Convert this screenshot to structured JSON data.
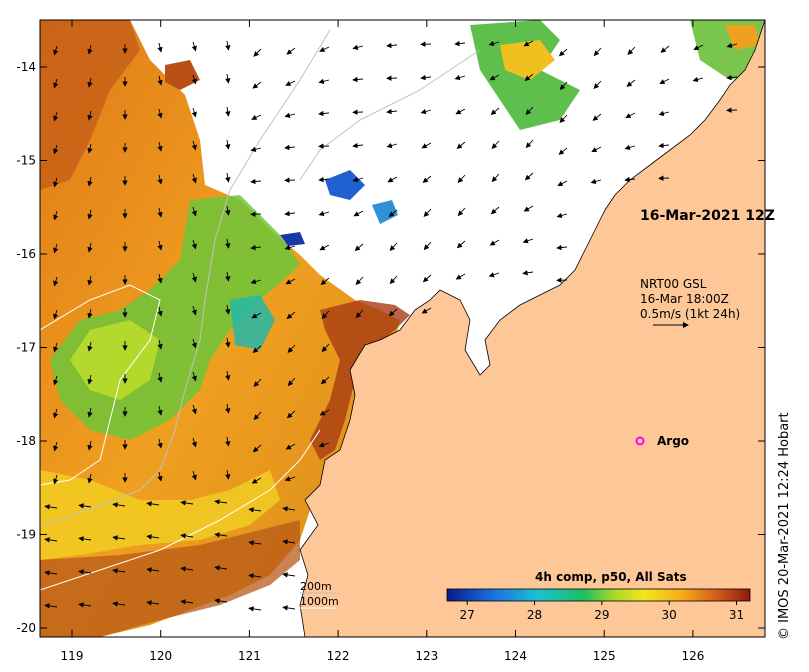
{
  "map": {
    "lon_ticks": [
      "119",
      "120",
      "121",
      "122",
      "123",
      "124",
      "125",
      "126"
    ],
    "lat_ticks": [
      "-14",
      "-15",
      "-16",
      "-17",
      "-18",
      "-19",
      "-20"
    ],
    "date_label": "16-Mar-2021 12Z",
    "currents": {
      "source": "NRT00 GSL",
      "time": "16-Mar 18:00Z",
      "scale": "0.5m/s (1kt 24h)"
    },
    "argo": {
      "label": "Argo",
      "color": "#ff00ff"
    },
    "contours": {
      "c200": "200m",
      "c1000": "1000m"
    },
    "colorbar": {
      "title": "4h comp, p50, All Sats",
      "ticks": [
        "27",
        "28",
        "29",
        "30",
        "31"
      ],
      "min": 26.7,
      "max": 31.2
    },
    "credit": "© IMOS 20-Mar-2021 12:24 Hobart",
    "colors": {
      "land": "#fdc797",
      "frame": "#000000"
    }
  }
}
